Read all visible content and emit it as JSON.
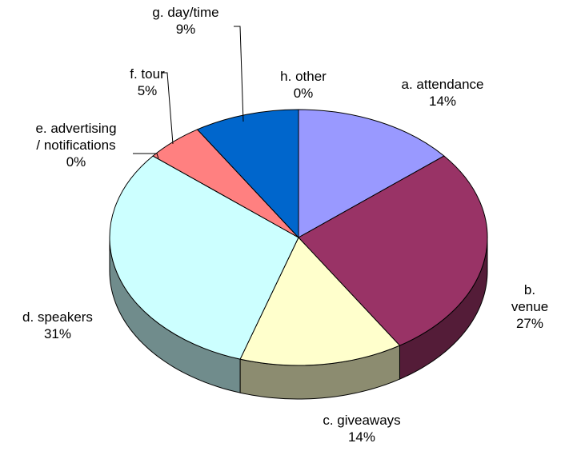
{
  "chart_data": {
    "type": "pie3d",
    "categories": [
      "a. attendance",
      "b. venue",
      "c. giveaways",
      "d. speakers",
      "e. advertising\n/ notifications",
      "f. tour",
      "g. day/time",
      "h. other"
    ],
    "values": [
      14,
      27,
      14,
      31,
      0,
      5,
      9,
      0
    ],
    "value_labels": [
      "14%",
      "27%",
      "14%",
      "31%",
      "0%",
      "5%",
      "9%",
      "0%"
    ],
    "colors": [
      "#9999ff",
      "#993366",
      "#ffffcc",
      "#ccffff",
      "#ffffff",
      "#ff8080",
      "#0066cc",
      "#ffffff"
    ]
  }
}
